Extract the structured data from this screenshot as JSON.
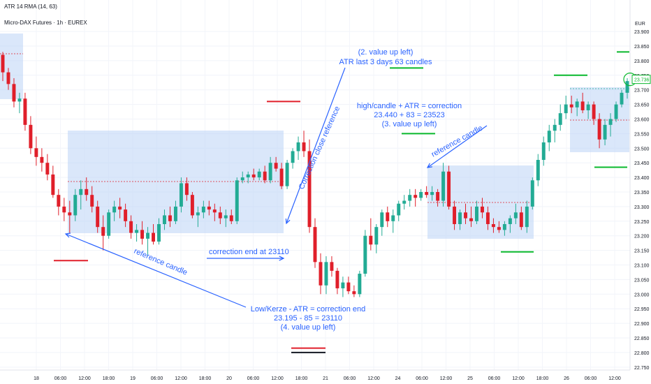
{
  "header": {
    "indicator": "ATR 14 RMA (14, 63)",
    "symbol": "Micro-DAX Futures · 1h · EUREX",
    "currency": "EUR",
    "last_price_tag": "23.736"
  },
  "chart_data": {
    "type": "candlestick",
    "y_range": [
      22740,
      23960
    ],
    "y_ticks": [
      "23.900",
      "23.850",
      "23.800",
      "23.750",
      "23.700",
      "23.650",
      "23.600",
      "23.550",
      "23.500",
      "23.450",
      "23.400",
      "23.350",
      "23.300",
      "23.250",
      "23.200",
      "23.150",
      "23.100",
      "23.050",
      "23.000",
      "22.950",
      "22.900",
      "22.850",
      "22.800",
      "22.750"
    ],
    "x_ticks": [
      "18",
      "06:00",
      "12:00",
      "18:00",
      "19",
      "06:00",
      "12:00",
      "18:00",
      "20",
      "06:00",
      "12:00",
      "18:00",
      "21",
      "06:00",
      "12:00",
      "24",
      "06:00",
      "12:00",
      "25",
      "06:00",
      "12:00",
      "18:00",
      "26",
      "06:00",
      "12:00"
    ],
    "up_color": "#22ab94",
    "down_color": "#e01f2a",
    "annotation_color": "#2962ff",
    "candles": [
      [
        23820,
        23830,
        23730,
        23760
      ],
      [
        23760,
        23775,
        23700,
        23720
      ],
      [
        23720,
        23740,
        23640,
        23660
      ],
      [
        23660,
        23690,
        23620,
        23670
      ],
      [
        23670,
        23690,
        23560,
        23580
      ],
      [
        23580,
        23610,
        23480,
        23500
      ],
      [
        23500,
        23540,
        23440,
        23470
      ],
      [
        23470,
        23500,
        23420,
        23450
      ],
      [
        23450,
        23480,
        23390,
        23410
      ],
      [
        23410,
        23440,
        23330,
        23340
      ],
      [
        23340,
        23360,
        23270,
        23300
      ],
      [
        23300,
        23330,
        23250,
        23280
      ],
      [
        23280,
        23320,
        23210,
        23270
      ],
      [
        23270,
        23360,
        23250,
        23340
      ],
      [
        23340,
        23390,
        23290,
        23360
      ],
      [
        23360,
        23400,
        23320,
        23340
      ],
      [
        23340,
        23370,
        23280,
        23300
      ],
      [
        23300,
        23320,
        23210,
        23230
      ],
      [
        23230,
        23270,
        23150,
        23200
      ],
      [
        23200,
        23290,
        23190,
        23280
      ],
      [
        23280,
        23320,
        23250,
        23300
      ],
      [
        23300,
        23330,
        23260,
        23290
      ],
      [
        23290,
        23310,
        23230,
        23250
      ],
      [
        23250,
        23270,
        23190,
        23210
      ],
      [
        23210,
        23240,
        23180,
        23220
      ],
      [
        23220,
        23250,
        23170,
        23190
      ],
      [
        23190,
        23230,
        23130,
        23210
      ],
      [
        23210,
        23240,
        23170,
        23180
      ],
      [
        23180,
        23260,
        23170,
        23240
      ],
      [
        23240,
        23290,
        23220,
        23270
      ],
      [
        23270,
        23300,
        23230,
        23250
      ],
      [
        23250,
        23320,
        23240,
        23300
      ],
      [
        23300,
        23400,
        23280,
        23380
      ],
      [
        23380,
        23400,
        23320,
        23340
      ],
      [
        23340,
        23350,
        23260,
        23270
      ],
      [
        23270,
        23300,
        23230,
        23280
      ],
      [
        23280,
        23320,
        23260,
        23300
      ],
      [
        23300,
        23320,
        23270,
        23290
      ],
      [
        23290,
        23310,
        23250,
        23280
      ],
      [
        23280,
        23300,
        23240,
        23260
      ],
      [
        23260,
        23290,
        23230,
        23270
      ],
      [
        23270,
        23290,
        23240,
        23250
      ],
      [
        23250,
        23400,
        23240,
        23390
      ],
      [
        23390,
        23420,
        23380,
        23400
      ],
      [
        23400,
        23420,
        23380,
        23410
      ],
      [
        23410,
        23430,
        23390,
        23400
      ],
      [
        23400,
        23430,
        23390,
        23420
      ],
      [
        23420,
        23440,
        23380,
        23390
      ],
      [
        23390,
        23470,
        23380,
        23450
      ],
      [
        23450,
        23470,
        23420,
        23430
      ],
      [
        23430,
        23450,
        23360,
        23370
      ],
      [
        23370,
        23460,
        23360,
        23450
      ],
      [
        23450,
        23500,
        23430,
        23490
      ],
      [
        23490,
        23540,
        23460,
        23520
      ],
      [
        23520,
        23560,
        23470,
        23490
      ],
      [
        23490,
        23530,
        23210,
        23230
      ],
      [
        23230,
        23260,
        23090,
        23110
      ],
      [
        23110,
        23140,
        23000,
        23030
      ],
      [
        23030,
        23130,
        23000,
        23110
      ],
      [
        23110,
        23130,
        23060,
        23080
      ],
      [
        23080,
        23090,
        23000,
        23020
      ],
      [
        23020,
        23060,
        22990,
        23040
      ],
      [
        23040,
        23060,
        23000,
        23010
      ],
      [
        23010,
        23030,
        22990,
        23000
      ],
      [
        23000,
        23080,
        22990,
        23070
      ],
      [
        23070,
        23220,
        23060,
        23200
      ],
      [
        23200,
        23260,
        23150,
        23170
      ],
      [
        23170,
        23240,
        23140,
        23230
      ],
      [
        23230,
        23290,
        23200,
        23280
      ],
      [
        23280,
        23300,
        23230,
        23250
      ],
      [
        23250,
        23290,
        23210,
        23270
      ],
      [
        23270,
        23320,
        23250,
        23310
      ],
      [
        23310,
        23340,
        23290,
        23320
      ],
      [
        23320,
        23360,
        23300,
        23340
      ],
      [
        23340,
        23360,
        23300,
        23330
      ],
      [
        23330,
        23360,
        23320,
        23350
      ],
      [
        23350,
        23370,
        23330,
        23340
      ],
      [
        23340,
        23370,
        23320,
        23350
      ],
      [
        23350,
        23360,
        23300,
        23320
      ],
      [
        23320,
        23450,
        23300,
        23420
      ],
      [
        23420,
        23440,
        23290,
        23300
      ],
      [
        23300,
        23320,
        23220,
        23240
      ],
      [
        23240,
        23290,
        23220,
        23280
      ],
      [
        23280,
        23310,
        23240,
        23260
      ],
      [
        23260,
        23300,
        23230,
        23250
      ],
      [
        23250,
        23320,
        23240,
        23300
      ],
      [
        23300,
        23330,
        23260,
        23280
      ],
      [
        23280,
        23300,
        23220,
        23240
      ],
      [
        23240,
        23260,
        23210,
        23230
      ],
      [
        23230,
        23250,
        23210,
        23220
      ],
      [
        23220,
        23250,
        23200,
        23240
      ],
      [
        23240,
        23270,
        23210,
        23260
      ],
      [
        23260,
        23310,
        23240,
        23280
      ],
      [
        23280,
        23300,
        23220,
        23230
      ],
      [
        23230,
        23320,
        23210,
        23300
      ],
      [
        23300,
        23400,
        23290,
        23390
      ],
      [
        23390,
        23480,
        23370,
        23460
      ],
      [
        23460,
        23540,
        23440,
        23520
      ],
      [
        23520,
        23580,
        23490,
        23560
      ],
      [
        23560,
        23600,
        23520,
        23580
      ],
      [
        23580,
        23650,
        23560,
        23620
      ],
      [
        23620,
        23680,
        23600,
        23650
      ],
      [
        23650,
        23680,
        23620,
        23640
      ],
      [
        23640,
        23670,
        23610,
        23660
      ],
      [
        23660,
        23690,
        23620,
        23630
      ],
      [
        23630,
        23660,
        23600,
        23650
      ],
      [
        23650,
        23660,
        23580,
        23600
      ],
      [
        23600,
        23620,
        23500,
        23530
      ],
      [
        23530,
        23600,
        23510,
        23580
      ],
      [
        23580,
        23620,
        23540,
        23600
      ],
      [
        23600,
        23660,
        23590,
        23650
      ],
      [
        23650,
        23700,
        23640,
        23690
      ],
      [
        23690,
        23740,
        23670,
        23730
      ]
    ],
    "annotations": [
      "(2. value up left)",
      "ATR last 3 days 63 candles",
      "high/candle + ATR = correction",
      "23.440 + 83 = 23523",
      "(3. value up left)",
      "Correction close reference",
      "reference candle",
      "reference candle",
      "correction end at 23110",
      "Low/Kerze - ATR = correction end",
      "23.195 - 85 = 23110",
      "(4. value up left)"
    ],
    "horizontal_levels_red": [
      23660,
      23115,
      22815
    ],
    "horizontal_levels_black": [
      22800
    ],
    "horizontal_levels_green": [
      23830,
      23750,
      23550,
      23435,
      23145
    ]
  }
}
